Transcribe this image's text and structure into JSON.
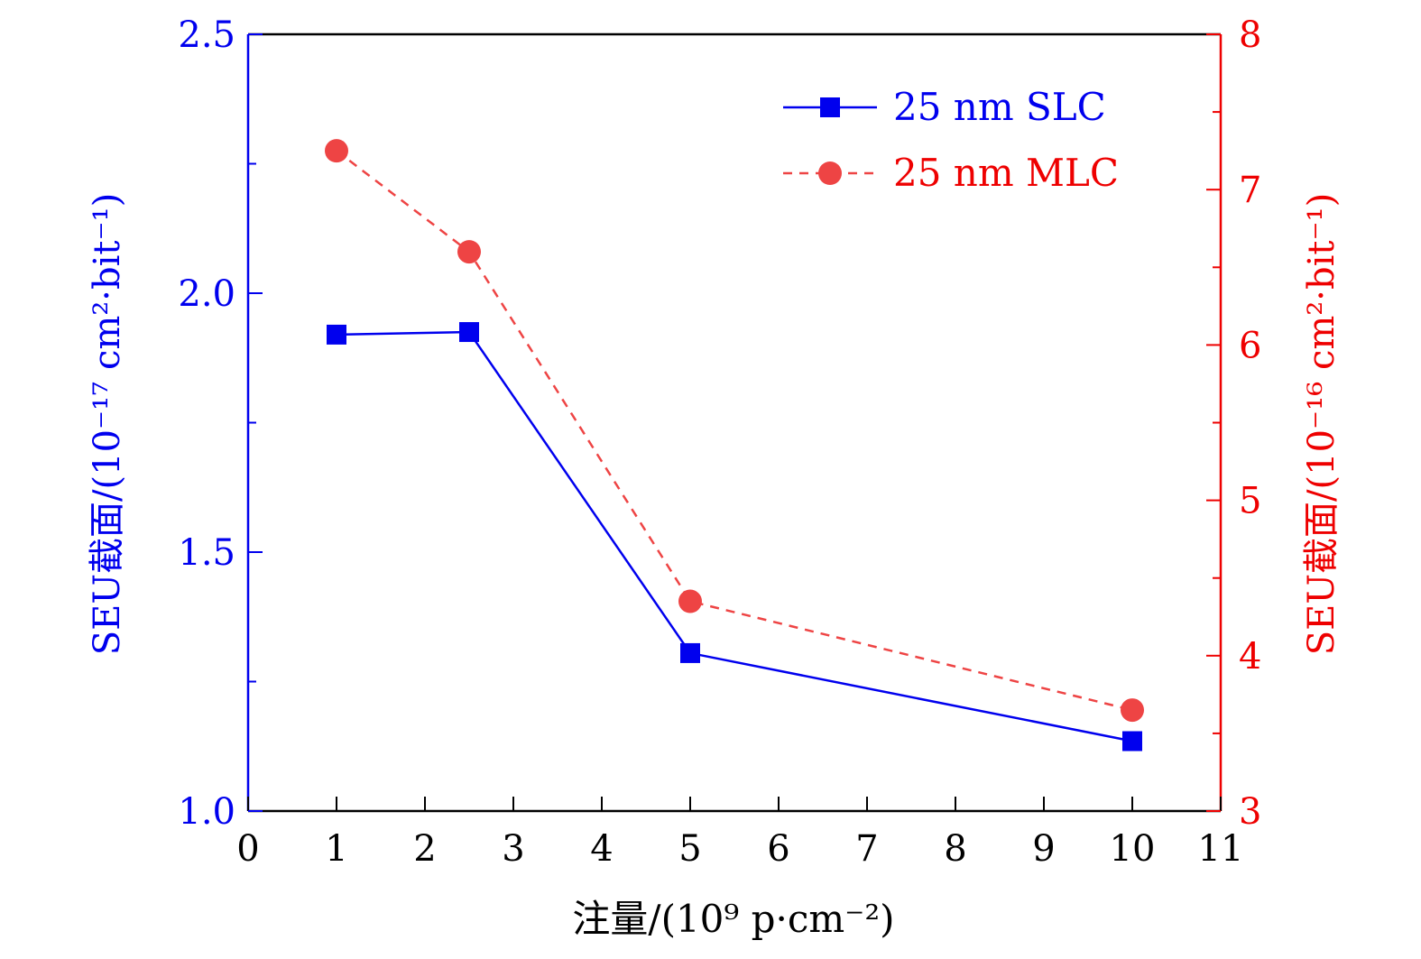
{
  "chart_data": {
    "type": "line",
    "xlabel": "注量/(10⁹ p·cm⁻²)",
    "ylabel_left": "SEU截面/(10⁻¹⁷ cm²·bit⁻¹)",
    "ylabel_right": "SEU截面/(10⁻¹⁶ cm²·bit⁻¹)",
    "xlim": [
      0,
      11
    ],
    "xticks": [
      "0",
      "1",
      "2",
      "3",
      "4",
      "5",
      "6",
      "7",
      "8",
      "9",
      "10",
      "11"
    ],
    "ylim_left": [
      1.0,
      2.5
    ],
    "yticks_left": [
      "1.0",
      "1.5",
      "2.0",
      "2.5"
    ],
    "ylim_right": [
      3,
      8
    ],
    "yticks_right": [
      "3",
      "4",
      "5",
      "6",
      "7",
      "8"
    ],
    "legend_position": "top-right",
    "grid": false,
    "series": [
      {
        "name": "25 nm SLC",
        "axis": "left",
        "color": "#0000ee",
        "marker": "square",
        "line": "solid",
        "x": [
          1,
          2.5,
          5,
          10
        ],
        "y": [
          1.92,
          1.925,
          1.305,
          1.135
        ]
      },
      {
        "name": "25 nm MLC",
        "axis": "right",
        "color": "#ee4444",
        "marker": "circle",
        "line": "dashed",
        "x": [
          1,
          2.5,
          5,
          10
        ],
        "y": [
          7.25,
          6.6,
          4.35,
          3.65
        ]
      }
    ],
    "colors": {
      "left_axis": "#0000ee",
      "right_axis": "#ee0000",
      "frame": "#000000"
    }
  }
}
